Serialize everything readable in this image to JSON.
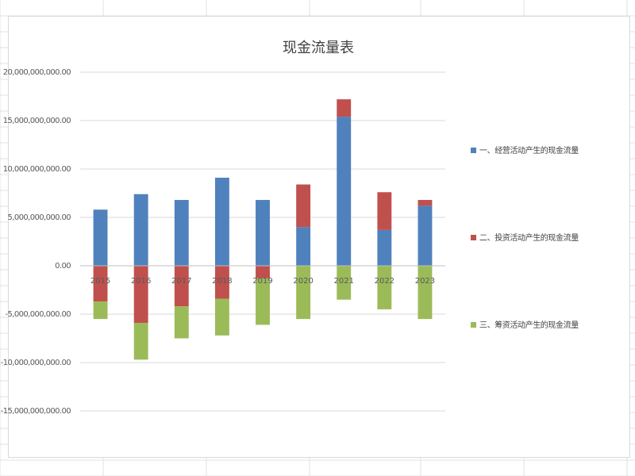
{
  "chart_data": {
    "type": "bar",
    "stacked": true,
    "title": "现金流量表",
    "categories": [
      "2015",
      "2016",
      "2017",
      "2018",
      "2019",
      "2020",
      "2021",
      "2022",
      "2023"
    ],
    "series": [
      {
        "name": "一、经营活动产生的现金流量",
        "color": "#4f81bd",
        "values": [
          5800000000,
          7400000000,
          6800000000,
          9100000000,
          6800000000,
          4000000000,
          15400000000,
          3700000000,
          6200000000
        ]
      },
      {
        "name": "二、投资活动产生的现金流量",
        "color": "#c0504d",
        "values": [
          -3700000000,
          -5900000000,
          -4200000000,
          -3400000000,
          -1300000000,
          4400000000,
          1800000000,
          3900000000,
          600000000
        ]
      },
      {
        "name": "三、筹资活动产生的现金流量",
        "color": "#9bbb59",
        "values": [
          -1800000000,
          -3800000000,
          -3300000000,
          -3800000000,
          -4800000000,
          -5500000000,
          -3500000000,
          -4500000000,
          -5500000000
        ]
      }
    ],
    "y_ticks": [
      20000000000,
      15000000000,
      10000000000,
      5000000000,
      0,
      -5000000000,
      -10000000000,
      -15000000000
    ],
    "y_tick_labels": [
      "20,000,000,000.00",
      "15,000,000,000.00",
      "10,000,000,000.00",
      "5,000,000,000.00",
      "0.00",
      "-5,000,000,000.00",
      "-10,000,000,000.00",
      "-15,000,000,000.00"
    ],
    "ylim": [
      -15000000000,
      20000000000
    ],
    "grid": true,
    "legend_position": "right",
    "xlabel": "",
    "ylabel": ""
  }
}
